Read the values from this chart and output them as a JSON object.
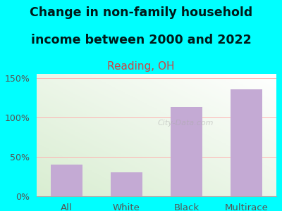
{
  "categories": [
    "All",
    "White",
    "Black",
    "Multirace"
  ],
  "values": [
    40,
    30,
    113,
    135
  ],
  "bar_color": "#c4aad4",
  "title_line1": "Change in non-family household",
  "title_line2": "income between 2000 and 2022",
  "subtitle": "Reading, OH",
  "title_fontsize": 12.5,
  "subtitle_fontsize": 11,
  "subtitle_color": "#cc4444",
  "title_color": "#001a1a",
  "tick_label_color": "#555555",
  "background_color": "#00ffff",
  "plot_bg_color_topleft": "#d8efd0",
  "plot_bg_color_topright": "#f0f8ee",
  "plot_bg_color_bottomleft": "#e8f8e0",
  "plot_bg_color_bottomright": "#ffffff",
  "yticks": [
    0,
    50,
    100,
    150
  ],
  "ylim": [
    0,
    155
  ],
  "gridline_color": "#ffb0b0",
  "watermark": "City-Data.com"
}
